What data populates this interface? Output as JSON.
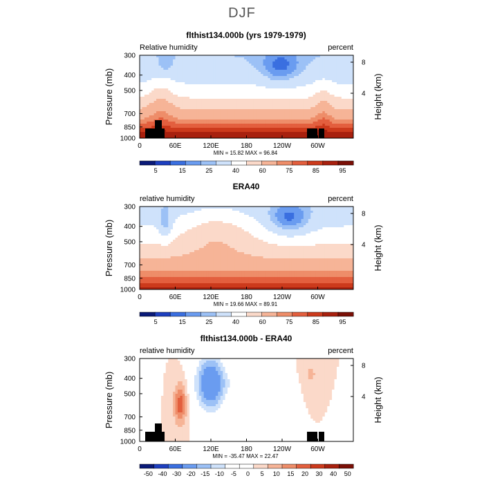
{
  "figure_title": "DJF",
  "colors": {
    "seq": [
      "#0a1a78",
      "#1d3fbf",
      "#3a6fe0",
      "#6a9cf0",
      "#9cc1f6",
      "#cfe2fb",
      "#ffffff",
      "#fbd9c9",
      "#f6b497",
      "#ee8d69",
      "#e35f3e",
      "#cc3a1c",
      "#a8200e",
      "#7a0f06"
    ],
    "diff": [
      "#0a1a78",
      "#1d3fbf",
      "#3a6fe0",
      "#6a9cf0",
      "#9cc1f6",
      "#cfe2fb",
      "#ffffff",
      "#ffffff",
      "#fbd9c9",
      "#f6b497",
      "#ee8d69",
      "#e35f3e",
      "#cc3a1c",
      "#a8200e",
      "#7a0f06"
    ],
    "terrain": "#000000"
  },
  "chart_data": [
    {
      "type": "heatmap",
      "title": "flthist134.000b (yrs 1979-1979)",
      "left_label": "Relative humidity",
      "right_label": "percent",
      "ylabel": "Pressure (mb)",
      "ylabel_right": "Height (km)",
      "yticks": [
        "300",
        "400",
        "500",
        "700",
        "850",
        "1000"
      ],
      "yticks_right": [
        "8",
        "4"
      ],
      "xticks": [
        "0",
        "60E",
        "120E",
        "180",
        "120W",
        "60W"
      ],
      "stats": "MIN =   15.82   MAX =   96.84",
      "colorbar_labels": [
        "5",
        "15",
        "25",
        "40",
        "60",
        "75",
        "85",
        "95"
      ],
      "scale": "seq"
    },
    {
      "type": "heatmap",
      "title": "ERA40",
      "left_label": "relative humidity",
      "right_label": "percent",
      "ylabel": "Pressure (mb)",
      "ylabel_right": "Height (km)",
      "yticks": [
        "300",
        "400",
        "500",
        "700",
        "850",
        "1000"
      ],
      "yticks_right": [
        "8",
        "4"
      ],
      "xticks": [
        "0",
        "60E",
        "120E",
        "180",
        "120W",
        "60W"
      ],
      "stats": "MIN =   19.66   MAX =   89.91",
      "colorbar_labels": [
        "5",
        "15",
        "25",
        "40",
        "60",
        "75",
        "85",
        "95"
      ],
      "scale": "seq"
    },
    {
      "type": "heatmap",
      "title": "flthist134.000b - ERA40",
      "left_label": "relative humidity",
      "right_label": "percent",
      "ylabel": "Pressure (mb)",
      "ylabel_right": "Height (km)",
      "yticks": [
        "300",
        "400",
        "500",
        "700",
        "850",
        "1000"
      ],
      "yticks_right": [
        "8",
        "4"
      ],
      "xticks": [
        "0",
        "60E",
        "120E",
        "180",
        "120W",
        "60W"
      ],
      "stats": "MIN =  -35.47   MAX =   22.47",
      "colorbar_labels": [
        "-50",
        "-40",
        "-30",
        "-20",
        "-15",
        "-10",
        "-5",
        "0",
        "5",
        "10",
        "15",
        "20",
        "30",
        "40",
        "50"
      ],
      "scale": "diff"
    }
  ]
}
